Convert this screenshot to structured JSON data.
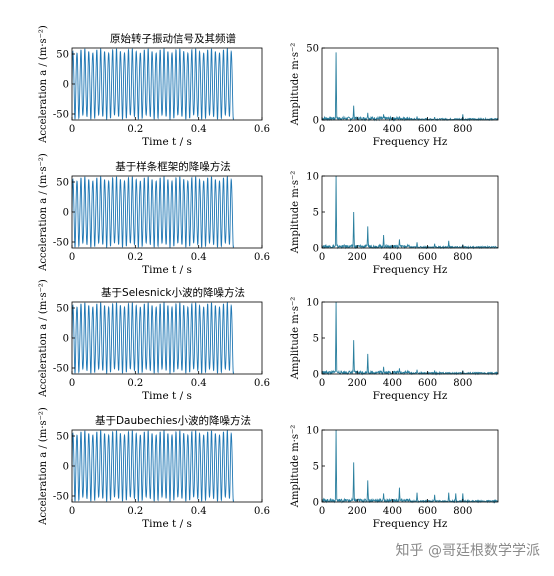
{
  "watermark": "知乎 @哥廷根数学学派",
  "colors": {
    "signal": "#1f77b4",
    "spectrum": "#2a7f9e",
    "axis": "#000000"
  },
  "chart_data": [
    {
      "type": "line",
      "title": "原始转子振动信号及其频谱",
      "xlabel": "Time t / s",
      "ylabel": "Acceleration a / (m·s⁻²)",
      "xlim": [
        0,
        0.6
      ],
      "ylim": [
        -60,
        60
      ],
      "xticks": [
        0,
        0.2,
        0.4,
        0.6
      ],
      "yticks": [
        -50,
        0,
        50
      ],
      "series": [
        {
          "x_end": 0.51,
          "amplitude": 55,
          "frequency_hz": 80
        }
      ]
    },
    {
      "type": "line",
      "title": "",
      "xlabel": "Frequency Hz",
      "ylabel": "Amplitude m·s⁻²",
      "xlim": [
        0,
        1000
      ],
      "ylim": [
        0,
        50
      ],
      "xticks": [
        0,
        200,
        400,
        600,
        800
      ],
      "yticks": [
        0,
        50
      ],
      "peaks": [
        [
          80,
          47
        ],
        [
          180,
          10
        ],
        [
          260,
          5
        ],
        [
          350,
          4
        ],
        [
          440,
          2.5
        ],
        [
          540,
          2.5
        ],
        [
          640,
          2
        ],
        [
          800,
          4
        ]
      ]
    },
    {
      "type": "line",
      "title": "基于样条框架的降噪方法",
      "xlabel": "Time t / s",
      "ylabel": "Acceleration a / (m·s⁻²)",
      "xlim": [
        0,
        0.6
      ],
      "ylim": [
        -60,
        60
      ],
      "xticks": [
        0,
        0.2,
        0.4,
        0.6
      ],
      "yticks": [
        -50,
        0,
        50
      ],
      "series": [
        {
          "x_end": 0.51,
          "amplitude": 55,
          "frequency_hz": 80
        }
      ]
    },
    {
      "type": "line",
      "title": "",
      "xlabel": "Frequency Hz",
      "ylabel": "Amplitude m·s⁻²",
      "xlim": [
        0,
        1000
      ],
      "ylim": [
        0,
        10
      ],
      "xticks": [
        0,
        200,
        400,
        600,
        800
      ],
      "yticks": [
        0,
        5,
        10
      ],
      "peaks": [
        [
          80,
          10
        ],
        [
          180,
          5
        ],
        [
          260,
          3
        ],
        [
          350,
          1.8
        ],
        [
          440,
          1.2
        ],
        [
          540,
          0.8
        ],
        [
          640,
          0.6
        ],
        [
          720,
          1
        ],
        [
          800,
          0.5
        ]
      ]
    },
    {
      "type": "line",
      "title": "基于Selesnick小波的降噪方法",
      "xlabel": "Time t / s",
      "ylabel": "Acceleration a / (m·s⁻²)",
      "xlim": [
        0,
        0.6
      ],
      "ylim": [
        -60,
        60
      ],
      "xticks": [
        0,
        0.2,
        0.4,
        0.6
      ],
      "yticks": [
        -50,
        0,
        50
      ],
      "series": [
        {
          "x_end": 0.51,
          "amplitude": 55,
          "frequency_hz": 80
        }
      ]
    },
    {
      "type": "line",
      "title": "",
      "xlabel": "Frequency Hz",
      "ylabel": "Amplitude m·s⁻²",
      "xlim": [
        0,
        1000
      ],
      "ylim": [
        0,
        10
      ],
      "xticks": [
        0,
        200,
        400,
        600,
        800
      ],
      "yticks": [
        0,
        5,
        10
      ],
      "peaks": [
        [
          80,
          10
        ],
        [
          180,
          4.7
        ],
        [
          260,
          2.8
        ],
        [
          350,
          1
        ],
        [
          440,
          0.8
        ],
        [
          540,
          0.6
        ],
        [
          640,
          0.5
        ],
        [
          800,
          0.5
        ]
      ]
    },
    {
      "type": "line",
      "title": "基于Daubechies小波的降噪方法",
      "xlabel": "Time t / s",
      "ylabel": "Acceleration a / (m·s⁻²)",
      "xlim": [
        0,
        0.6
      ],
      "ylim": [
        -60,
        60
      ],
      "xticks": [
        0,
        0.2,
        0.4,
        0.6
      ],
      "yticks": [
        -50,
        0,
        50
      ],
      "series": [
        {
          "x_end": 0.51,
          "amplitude": 55,
          "frequency_hz": 80
        }
      ]
    },
    {
      "type": "line",
      "title": "",
      "xlabel": "Frequency Hz",
      "ylabel": "Amplitude m·s⁻²",
      "xlim": [
        0,
        1000
      ],
      "ylim": [
        0,
        10
      ],
      "xticks": [
        0,
        200,
        400,
        600,
        800
      ],
      "yticks": [
        0,
        5,
        10
      ],
      "peaks": [
        [
          80,
          10
        ],
        [
          180,
          5.5
        ],
        [
          260,
          3
        ],
        [
          350,
          1.2
        ],
        [
          440,
          2
        ],
        [
          540,
          1.3
        ],
        [
          640,
          1
        ],
        [
          720,
          1.3
        ],
        [
          760,
          1.2
        ],
        [
          800,
          1.2
        ]
      ]
    }
  ]
}
